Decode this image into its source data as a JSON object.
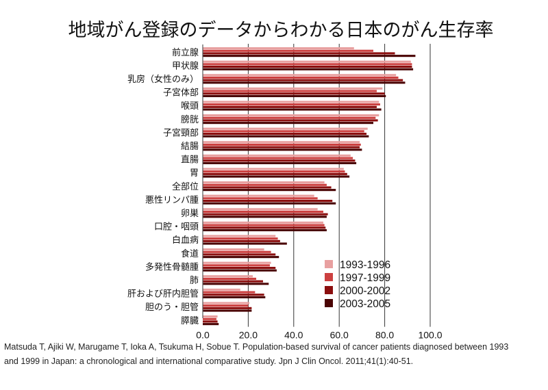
{
  "title": "地域がん登録のデータからわかる日本のがん生存率",
  "citation": {
    "line1": "Matsuda T, Ajiki W, Marugame T, Ioka A, Tsukuma H, Sobue T. Population-based survival of cancer patients diagnosed between 1993",
    "line2": "and 1999 in Japan: a chronological and international comparative study. Jpn J Clin Oncol. 2011;41(1):40-51."
  },
  "chart_data": {
    "type": "bar",
    "orientation": "horizontal",
    "categories": [
      "前立腺",
      "甲状腺",
      "乳房（女性のみ）",
      "子宮体部",
      "喉頭",
      "膀胱",
      "子宮頸部",
      "結腸",
      "直腸",
      "胃",
      "全部位",
      "悪性リンパ腫",
      "卵巣",
      "口腔・咽頭",
      "白血病",
      "食道",
      "多発性骨髄腫",
      "肺",
      "肝および肝内胆管",
      "胆のう・胆管",
      "膵臓"
    ],
    "series": [
      {
        "name": "1993-1996",
        "color": "#e8a0a0",
        "values": [
          66.5,
          91.5,
          85.0,
          79.0,
          77.5,
          77.5,
          72.5,
          69.0,
          65.0,
          62.0,
          53.5,
          49.0,
          50.5,
          53.0,
          32.0,
          27.0,
          30.0,
          22.0,
          16.5,
          20.5,
          6.5
        ]
      },
      {
        "name": "1997-1999",
        "color": "#cc4040",
        "values": [
          75.0,
          92.0,
          86.0,
          76.5,
          78.0,
          76.0,
          71.0,
          69.5,
          66.0,
          62.5,
          54.5,
          50.5,
          53.0,
          53.5,
          33.0,
          30.0,
          29.5,
          23.5,
          23.0,
          20.0,
          6.0
        ]
      },
      {
        "name": "2000-2002",
        "color": "#8b0e0e",
        "values": [
          84.5,
          92.0,
          88.0,
          80.0,
          76.5,
          77.0,
          72.0,
          69.0,
          67.0,
          63.5,
          56.5,
          57.0,
          55.0,
          54.0,
          34.0,
          32.0,
          32.0,
          26.5,
          27.0,
          21.5,
          6.5
        ]
      },
      {
        "name": "2003-2005",
        "color": "#4a0404",
        "values": [
          93.5,
          92.5,
          89.0,
          80.5,
          78.5,
          75.0,
          73.0,
          70.0,
          67.5,
          64.5,
          58.5,
          58.5,
          54.5,
          54.5,
          37.0,
          33.5,
          32.5,
          29.0,
          27.5,
          21.5,
          7.0
        ]
      }
    ],
    "xlim": [
      0,
      100
    ],
    "xticks": [
      "0.0",
      "20.0",
      "40.0",
      "60.0",
      "80.0",
      "100.0"
    ],
    "grid": "vertical",
    "legend_position": "bottom-right"
  }
}
